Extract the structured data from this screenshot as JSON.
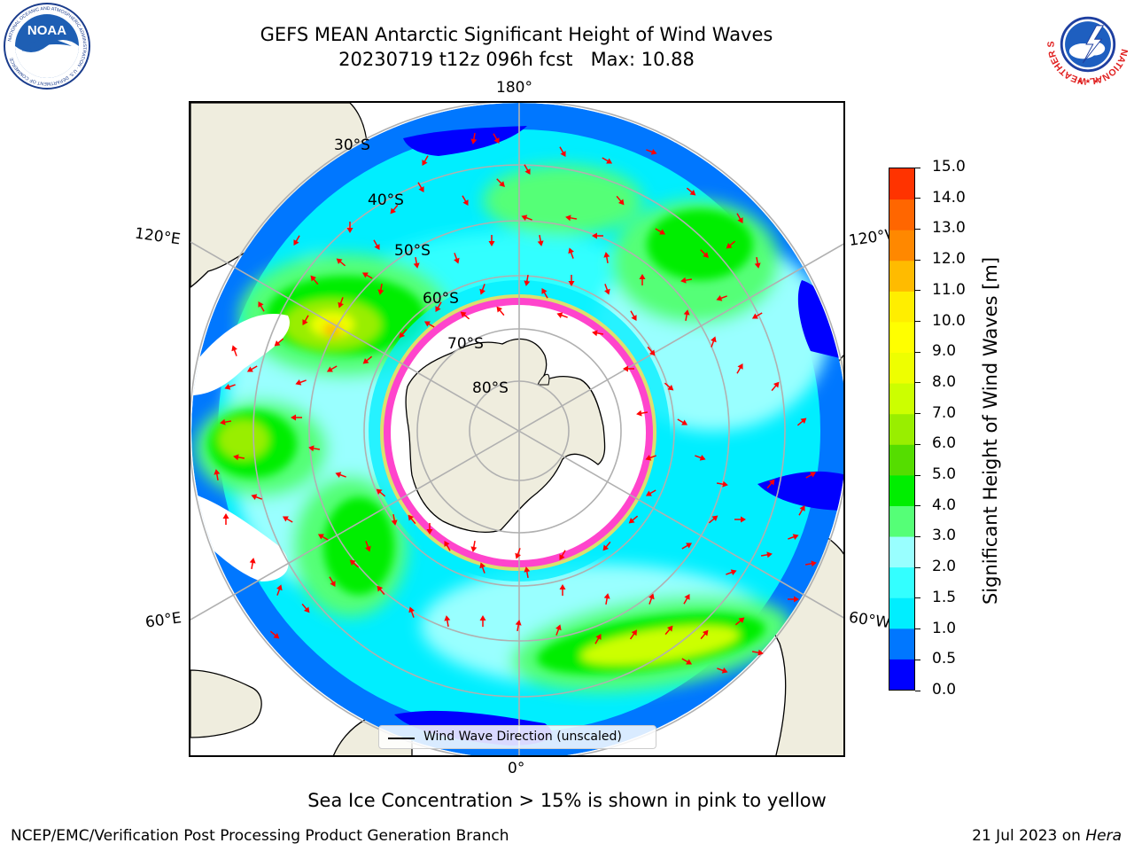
{
  "header": {
    "title_line1": "GEFS MEAN Antarctic Significant Height of Wind Waves",
    "title_line2": "20230719 t12z 096h fcst   Max: 10.88",
    "noaa_logo_text": "NOAA",
    "noaa_ring_text": "NATIONAL OCEANIC AND ATMOSPHERIC ADMINISTRATION · U.S. DEPARTMENT OF COMMERCE",
    "nws_ring_text": "NATIONAL WEATHER SERVICE"
  },
  "map": {
    "projection": "south-polar-stereographic",
    "lon_labels": {
      "top": "180°",
      "bottom": "0°",
      "upper_left": "120°E",
      "upper_right": "120°W",
      "lower_left": "60°E",
      "lower_right": "60°W"
    },
    "lat_labels": [
      "30°S",
      "40°S",
      "50°S",
      "60°S",
      "70°S",
      "80°S"
    ],
    "legend_label": "Wind Wave Direction (unscaled)",
    "arrow_color": "#ff0000",
    "land_color": "#efedde",
    "sea_ice_colors": [
      "#ff44cc",
      "#ffdd55"
    ]
  },
  "colorbar": {
    "label": "Significant Height of Wind Waves [m]",
    "ticks": [
      "0.0",
      "0.5",
      "1.0",
      "1.5",
      "2.0",
      "3.0",
      "4.0",
      "5.0",
      "6.0",
      "7.0",
      "8.0",
      "9.0",
      "10.0",
      "11.0",
      "12.0",
      "13.0",
      "14.0",
      "15.0"
    ],
    "colors": [
      "#0000ff",
      "#0077ff",
      "#00eeff",
      "#33ffff",
      "#99ffff",
      "#55ff77",
      "#00ee00",
      "#55dd00",
      "#99ee00",
      "#ccff00",
      "#eeff00",
      "#ffff00",
      "#ffee00",
      "#ffbb00",
      "#ff8800",
      "#ff6600",
      "#ff3300",
      "#ff0000"
    ]
  },
  "footer": {
    "sea_ice_note": "Sea Ice Concentration > 15% is shown in pink to yellow",
    "credit_left": "NCEP/EMC/Verification Post Processing Product Generation Branch",
    "credit_right_prefix": "21 Jul 2023 on ",
    "credit_right_machine": "Hera"
  }
}
